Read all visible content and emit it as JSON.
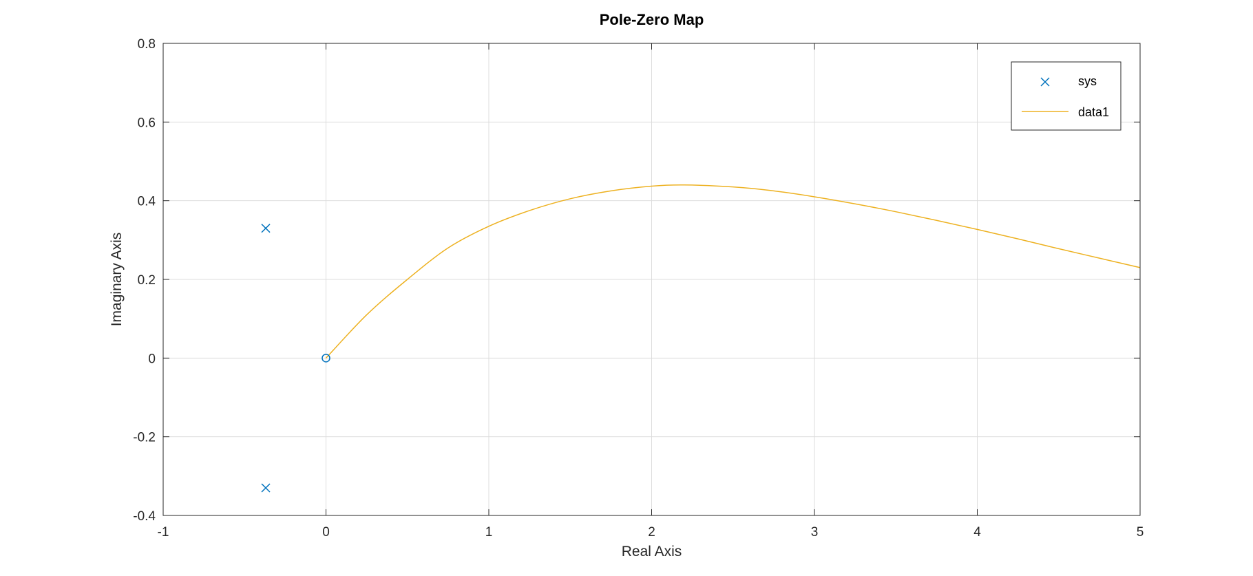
{
  "chart_data": {
    "type": "scatter",
    "title": "Pole-Zero Map",
    "xlabel": "Real Axis",
    "ylabel": "Imaginary Axis",
    "xlim": [
      -1,
      5
    ],
    "ylim": [
      -0.4,
      0.8
    ],
    "xticks": [
      -1,
      0,
      1,
      2,
      3,
      4,
      5
    ],
    "xtick_labels": [
      "-1",
      "0",
      "1",
      "2",
      "3",
      "4",
      "5"
    ],
    "yticks": [
      -0.4,
      -0.2,
      0,
      0.2,
      0.4,
      0.6,
      0.8
    ],
    "ytick_labels": [
      "-0.4",
      "-0.2",
      "0",
      "0.2",
      "0.4",
      "0.6",
      "0.8"
    ],
    "grid": true,
    "legend_position": "top-right",
    "colors": {
      "sys": "#0072BD",
      "data1": "#EDB120"
    },
    "series": [
      {
        "name": "sys",
        "poles": [
          {
            "x": -0.37,
            "y": 0.33
          },
          {
            "x": -0.37,
            "y": -0.33
          }
        ],
        "zeros": [
          {
            "x": 0,
            "y": 0
          }
        ]
      },
      {
        "name": "data1",
        "type": "line",
        "x": [
          0,
          0.25,
          0.5,
          0.75,
          1.0,
          1.25,
          1.5,
          1.75,
          2.0,
          2.2,
          2.5,
          2.75,
          3.0,
          3.25,
          3.5,
          3.75,
          4.0,
          4.25,
          4.5,
          4.75,
          5.0
        ],
        "y": [
          0,
          0.11,
          0.2,
          0.28,
          0.335,
          0.375,
          0.405,
          0.425,
          0.437,
          0.44,
          0.435,
          0.425,
          0.41,
          0.392,
          0.372,
          0.35,
          0.327,
          0.303,
          0.278,
          0.254,
          0.23
        ]
      }
    ]
  }
}
